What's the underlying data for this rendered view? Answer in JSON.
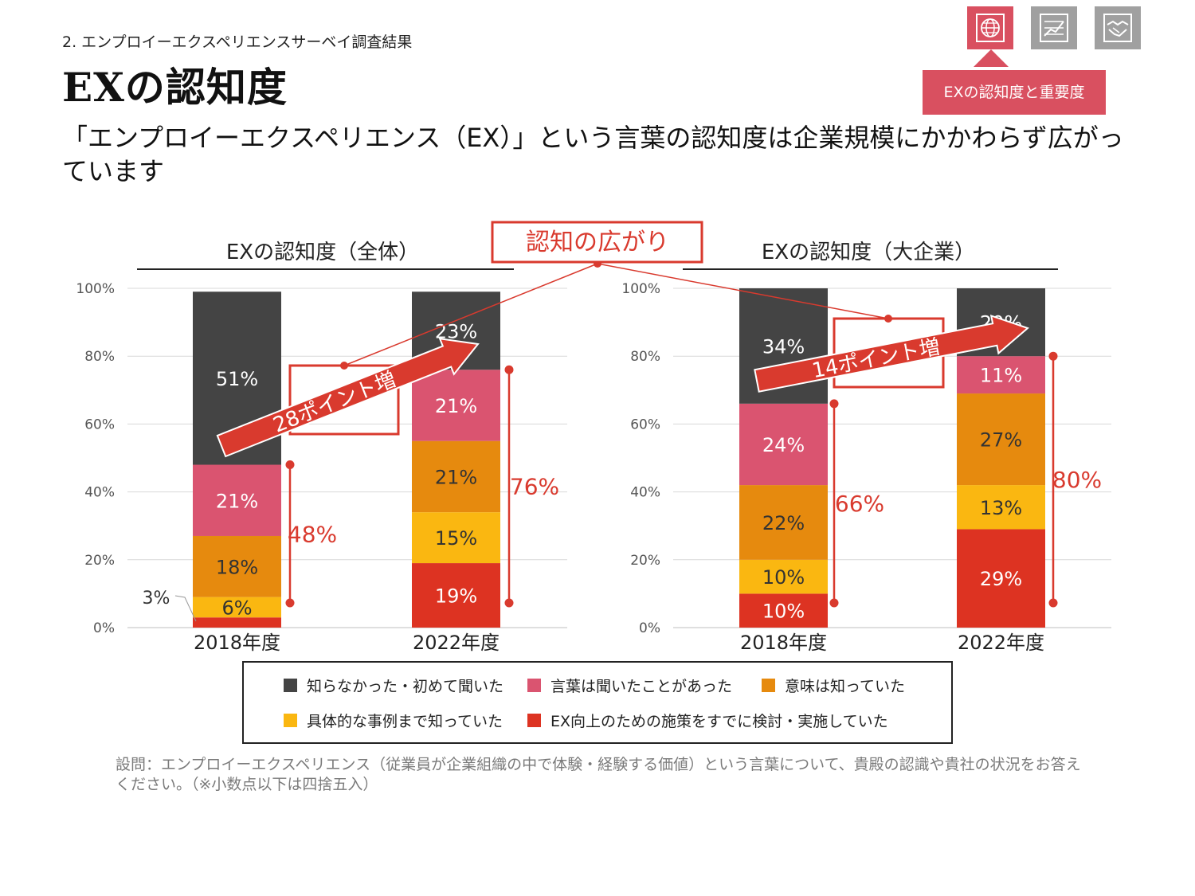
{
  "header": {
    "breadcrumb": "2. エンプロイーエクスペリエンスサーベイ調査結果",
    "title": "EXの認知度",
    "headline": "「エンプロイーエクスペリエンス（EX）」という言葉の認知度は企業規模にかかわらず広がっています"
  },
  "nav": {
    "tabs": [
      {
        "icon": "globe-icon",
        "active": true
      },
      {
        "icon": "chart-icon",
        "active": false
      },
      {
        "icon": "handshake-icon",
        "active": false
      }
    ],
    "tooltip": "EXの認知度と重要度"
  },
  "colors": {
    "not_known": "#444444",
    "heard": "#da5470",
    "know_meaning": "#e68a0e",
    "know_examples": "#fab711",
    "considering": "#dd3322",
    "annotation": "#d93a2e",
    "brand": "#d95060"
  },
  "chart_data": {
    "type": "bar",
    "stacked": true,
    "ylim": [
      0,
      100
    ],
    "yticks": [
      "0%",
      "20%",
      "40%",
      "60%",
      "80%",
      "100%"
    ],
    "grid": true,
    "legend_position": "bottom",
    "center_callout": "認知の広がり",
    "legend": [
      "知らなかった・初めて聞いた",
      "言葉は聞いたことがあった",
      "意味は知っていた",
      "具体的な事例まで知っていた",
      "EX向上のための施策をすでに検討・実施していた"
    ],
    "charts": [
      {
        "title": "EXの認知度（全体）",
        "categories": [
          "2018年度",
          "2022年度"
        ],
        "series": [
          {
            "name": "EX向上のための施策をすでに検討・実施していた",
            "values": [
              3,
              19
            ],
            "labels": [
              "",
              "19%"
            ]
          },
          {
            "name": "具体的な事例まで知っていた",
            "values": [
              6,
              15
            ],
            "labels": [
              "6%",
              "15%"
            ]
          },
          {
            "name": "意味は知っていた",
            "values": [
              18,
              21
            ],
            "labels": [
              "18%",
              "21%"
            ]
          },
          {
            "name": "言葉は聞いたことがあった",
            "values": [
              21,
              21
            ],
            "labels": [
              "21%",
              "21%"
            ]
          },
          {
            "name": "知らなかった・初めて聞いた",
            "values": [
              51,
              23
            ],
            "labels": [
              "51%",
              "23%"
            ]
          }
        ],
        "outside_label": "3%",
        "brackets": [
          {
            "category": 0,
            "from": 0,
            "to": 48,
            "label": "48%"
          },
          {
            "category": 1,
            "from": 0,
            "to": 76,
            "label": "76%"
          }
        ],
        "increase_label": "28ポイント増"
      },
      {
        "title": "EXの認知度（大企業）",
        "categories": [
          "2018年度",
          "2022年度"
        ],
        "series": [
          {
            "name": "EX向上のための施策をすでに検討・実施していた",
            "values": [
              10,
              29
            ],
            "labels": [
              "10%",
              "29%"
            ]
          },
          {
            "name": "具体的な事例まで知っていた",
            "values": [
              10,
              13
            ],
            "labels": [
              "10%",
              "13%"
            ]
          },
          {
            "name": "意味は知っていた",
            "values": [
              22,
              27
            ],
            "labels": [
              "22%",
              "27%"
            ]
          },
          {
            "name": "言葉は聞いたことがあった",
            "values": [
              24,
              11
            ],
            "labels": [
              "24%",
              "11%"
            ]
          },
          {
            "name": "知らなかった・初めて聞いた",
            "values": [
              34,
              20
            ],
            "labels": [
              "34%",
              "20%"
            ]
          }
        ],
        "brackets": [
          {
            "category": 0,
            "from": 0,
            "to": 66,
            "label": "66%"
          },
          {
            "category": 1,
            "from": 0,
            "to": 80,
            "label": "80%"
          }
        ],
        "increase_label": "14ポイント増"
      }
    ]
  },
  "footnote": "設問：エンプロイーエクスペリエンス（従業員が企業組織の中で体験・経験する価値）という言葉について、貴殿の認識や貴社の状況をお答えください。（※小数点以下は四捨五入）"
}
